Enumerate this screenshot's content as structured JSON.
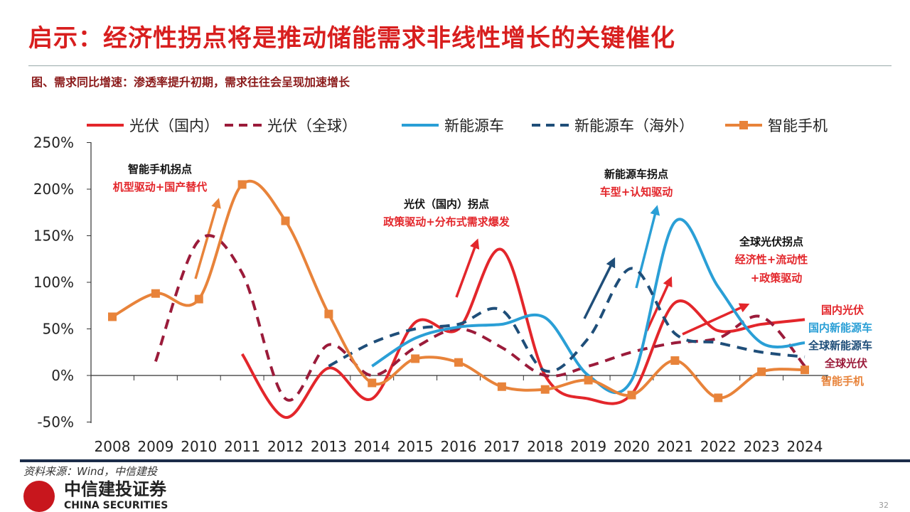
{
  "header": {
    "title": "启示：经济性拐点将是推动储能需求非线性增长的关键催化",
    "subtitle": "图、需求同比增速：渗透率提升初期，需求往往会呈现加速增长"
  },
  "chart_data": {
    "type": "line",
    "title": "需求同比增速",
    "x": [
      2008,
      2009,
      2010,
      2011,
      2012,
      2013,
      2014,
      2015,
      2016,
      2017,
      2018,
      2019,
      2020,
      2021,
      2022,
      2023,
      2024
    ],
    "ylim": [
      -50,
      250
    ],
    "yticks": [
      -50,
      0,
      50,
      100,
      150,
      200,
      250
    ],
    "ytick_labels": [
      "-50%",
      "0%",
      "50%",
      "100%",
      "150%",
      "200%",
      "250%"
    ],
    "xtick_labels": [
      "2008",
      "2009",
      "2010",
      "2011",
      "2012",
      "2013",
      "2014",
      "2015",
      "2016",
      "2017",
      "2018",
      "2019",
      "2020",
      "2021",
      "2022",
      "2023",
      "2024"
    ],
    "legend_position": "top",
    "series": [
      {
        "name": "光伏（国内）",
        "color": "#e3262b",
        "style": "solid",
        "markers": false,
        "values": [
          null,
          null,
          null,
          23,
          -45,
          8,
          -25,
          57,
          50,
          135,
          0,
          -25,
          -20,
          78,
          48,
          55,
          60
        ]
      },
      {
        "name": "光伏（全球）",
        "color": "#9b1b3a",
        "style": "dashed",
        "markers": false,
        "values": [
          null,
          15,
          145,
          110,
          -25,
          33,
          0,
          30,
          50,
          30,
          0,
          10,
          25,
          35,
          40,
          63,
          10
        ]
      },
      {
        "name": "新能源车",
        "color": "#2a9fd6",
        "style": "solid",
        "markers": false,
        "values": [
          null,
          null,
          null,
          null,
          null,
          null,
          10,
          40,
          52,
          55,
          62,
          0,
          -5,
          165,
          95,
          35,
          35
        ]
      },
      {
        "name": "新能源车（海外）",
        "color": "#1f4e79",
        "style": "dashed",
        "markers": false,
        "values": [
          null,
          null,
          null,
          null,
          null,
          10,
          35,
          50,
          55,
          70,
          5,
          40,
          115,
          45,
          35,
          25,
          20
        ]
      },
      {
        "name": "智能手机",
        "color": "#e8833a",
        "style": "solid",
        "markers": true,
        "values": [
          63,
          88,
          82,
          205,
          166,
          66,
          -8,
          18,
          14,
          -12,
          -15,
          -5,
          -21,
          16,
          -24,
          4,
          6
        ]
      }
    ],
    "annotations": [
      {
        "title": "智能手机拐点",
        "detail": [
          "机型驱动+国产替代"
        ]
      },
      {
        "title": "光伏（国内）拐点",
        "detail": [
          "政策驱动+分布式需求爆发"
        ]
      },
      {
        "title": "新能源车拐点",
        "detail": [
          "车型+认知驱动"
        ]
      },
      {
        "title": "全球光伏拐点",
        "detail": [
          "经济性+流动性",
          "+政策驱动"
        ]
      }
    ],
    "end_labels": [
      "国内光伏",
      "国内新能源车",
      "全球新能源车",
      "全球光伏",
      "智能手机"
    ]
  },
  "footer": {
    "source": "资料来源：Wind，中信建投",
    "logo_cn": "中信建投证券",
    "logo_en": "CHINA SECURITIES",
    "page": "32"
  }
}
